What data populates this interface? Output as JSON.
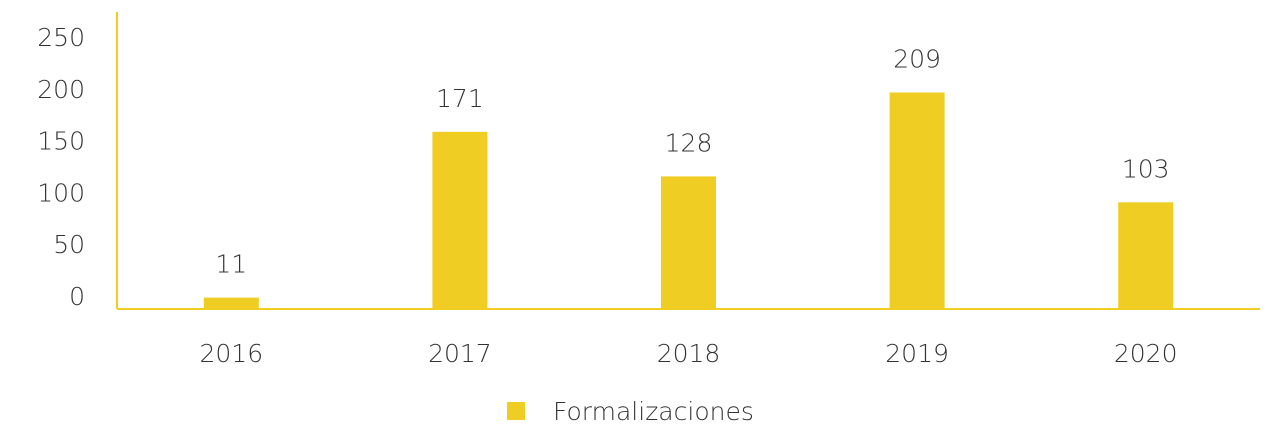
{
  "chart_data": {
    "type": "bar",
    "categories": [
      "2016",
      "2017",
      "2018",
      "2019",
      "2020"
    ],
    "series": [
      {
        "name": "Formalizaciones",
        "color": "#f0cd22",
        "values": [
          11,
          171,
          128,
          209,
          103
        ]
      }
    ],
    "ylim": [
      0,
      250
    ],
    "yticks": [
      0,
      50,
      100,
      150,
      200,
      250
    ],
    "grid": false,
    "legend": "bottom"
  }
}
